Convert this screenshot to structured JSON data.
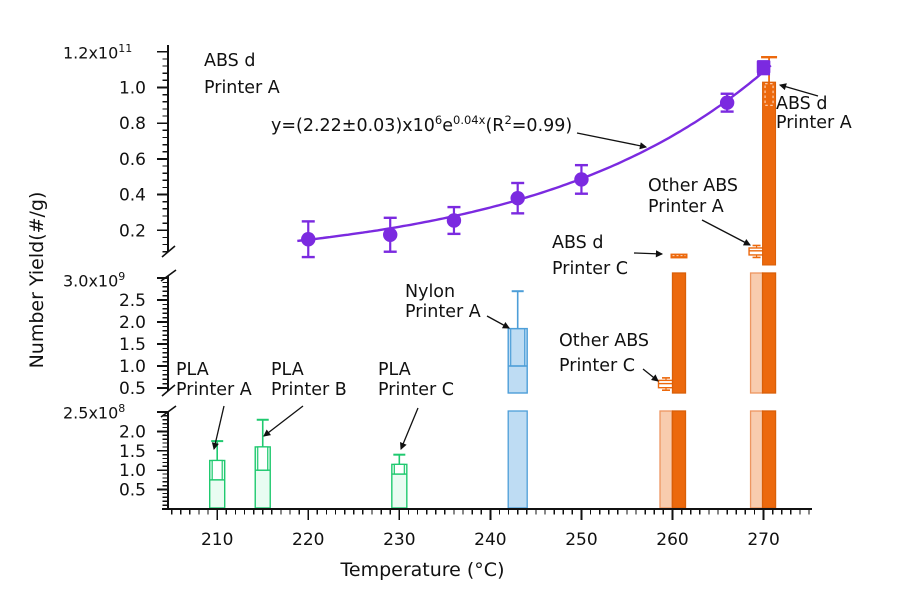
{
  "axes": {
    "x_title": "Temperature (°C)",
    "y_title": "Number Yield(#/g)",
    "x_tick_labels": [
      "210",
      "220",
      "230",
      "240",
      "250",
      "260",
      "270"
    ],
    "panel_scale_labels": [
      {
        "base": "1.2x10",
        "exp": "11"
      },
      {
        "base": "3.0x10",
        "exp": "9"
      },
      {
        "base": "2.5x10",
        "exp": "8"
      }
    ],
    "top_panel_ticks": [
      1.0,
      0.8,
      0.6,
      0.4,
      0.2
    ],
    "mid_panel_ticks": [
      2.5,
      2.0,
      1.5,
      1.0,
      0.5
    ],
    "bot_panel_ticks": [
      2.0,
      1.5,
      1.0,
      0.5
    ]
  },
  "annotations": {
    "abs_top": {
      "line1": "ABS d",
      "line2": "Printer A"
    },
    "abs_right": {
      "line1": "ABS d",
      "line2": "Printer A"
    },
    "other_a": {
      "line1": "Other ABS",
      "line2": "Printer A"
    },
    "abs_c": {
      "line1": "ABS d",
      "line2": "Printer C"
    },
    "other_c": {
      "line1": "Other ABS",
      "line2": "Printer C"
    },
    "nylon": {
      "line1": "Nylon",
      "line2": "Printer A"
    },
    "pla_a": {
      "line1": "PLA",
      "line2": "Printer A"
    },
    "pla_b": {
      "line1": "PLA",
      "line2": "Printer B"
    },
    "pla_c": {
      "line1": "PLA",
      "line2": "Printer C"
    },
    "equation": {
      "segments": [
        {
          "t": "y=(2.22±0.03)x10"
        },
        {
          "t": "6",
          "sup": true
        },
        {
          "t": "e"
        },
        {
          "t": "0.04x",
          "sup": true
        },
        {
          "t": "(R"
        },
        {
          "t": "2",
          "sup": true
        },
        {
          "t": "=0.99)"
        }
      ]
    }
  },
  "chart_data": {
    "type": "combo scatter+bar with broken y-axis (3 panels)",
    "xlabel": "Temperature (°C)",
    "ylabel": "Number Yield(#/g)",
    "x_range": [
      204.5,
      275.5
    ],
    "x_major_ticks": [
      210,
      220,
      230,
      240,
      250,
      260,
      270
    ],
    "x_minor_step": 1,
    "y_panels": [
      {
        "position": "top",
        "unit": 100000000000.0,
        "scale_label": "1.2x10^11",
        "tick_values": [
          0.2,
          0.4,
          0.6,
          0.8,
          1.0,
          1.2
        ]
      },
      {
        "position": "middle",
        "unit": 1000000000.0,
        "scale_label": "3.0x10^9",
        "tick_values": [
          0.5,
          1.0,
          1.5,
          2.0,
          2.5,
          3.0
        ]
      },
      {
        "position": "bottom",
        "unit": 100000000.0,
        "scale_label": "2.5x10^8",
        "tick_values": [
          0.5,
          1.0,
          1.5,
          2.0,
          2.5
        ]
      }
    ],
    "fit": {
      "equation": "y=(2.22±0.03)x10^6 e^(0.04x)",
      "r_squared": 0.99,
      "a": 2220000.0,
      "b": 0.04
    },
    "scatter_series": {
      "name": "ABS d Printer A",
      "color": "#7b2ae0",
      "points": [
        {
          "temp": 220,
          "yield": 15000000000.0,
          "err": 10000000000.0
        },
        {
          "temp": 229,
          "yield": 17500000000.0,
          "err": 9500000000.0
        },
        {
          "temp": 236,
          "yield": 25500000000.0,
          "err": 7500000000.0
        },
        {
          "temp": 243,
          "yield": 38000000000.0,
          "err": 8500000000.0
        },
        {
          "temp": 250,
          "yield": 48500000000.0,
          "err": 8000000000.0
        },
        {
          "temp": 266,
          "yield": 91500000000.0,
          "err": 5000000000.0
        },
        {
          "temp": 270,
          "yield": 111000000000.0,
          "err": 3500000000.0,
          "marker": "square"
        }
      ]
    },
    "bar_series": [
      {
        "name": "PLA Printer A",
        "temp": 210,
        "value": 125000000.0,
        "whisker_hi": 175000000.0,
        "whisker_lo": 75000000.0,
        "style": "green"
      },
      {
        "name": "PLA Printer B",
        "temp": 215,
        "value": 160000000.0,
        "whisker_hi": 230000000.0,
        "whisker_lo": 100000000.0,
        "style": "green"
      },
      {
        "name": "PLA Printer C",
        "temp": 230,
        "value": 115000000.0,
        "whisker_hi": 140000000.0,
        "whisker_lo": 90000000.0,
        "style": "green"
      },
      {
        "name": "Nylon Printer A",
        "temp": 243,
        "value": 1850000000.0,
        "whisker_hi": 2700000000.0,
        "whisker_lo": 1000000000.0,
        "style": "blue"
      },
      {
        "name": "Other ABS Printer C",
        "temp": 260,
        "value": 600000000.0,
        "whisker_hi": 730000000.0,
        "whisker_lo": 450000000.0,
        "style": "light-orange"
      },
      {
        "name": "ABS d Printer C",
        "temp": 260,
        "value": 5800000000.0,
        "whisker_hi": 7800000000.0,
        "whisker_lo": 3400000000.0,
        "style": "dark-orange"
      },
      {
        "name": "Other ABS Printer A",
        "temp": 270,
        "value": 8500000000.0,
        "whisker_hi": 11500000000.0,
        "whisker_lo": 4800000000.0,
        "style": "light-orange"
      },
      {
        "name": "ABS d Printer A",
        "temp": 270,
        "value": 103000000000.0,
        "whisker_hi": 117000000000.0,
        "whisker_lo": 90000000000.0,
        "style": "dark-orange"
      }
    ],
    "colors": {
      "purple": "#7b2ae0",
      "dark_orange": "#ec690d",
      "light_orange_fill": "#f8ccae",
      "light_orange_border": "#ed9660",
      "green_border": "#1fc96f",
      "green_fill": "#e9fcf2",
      "blue_border": "#4d9ed8",
      "blue_fill": "#bedcf3"
    }
  }
}
